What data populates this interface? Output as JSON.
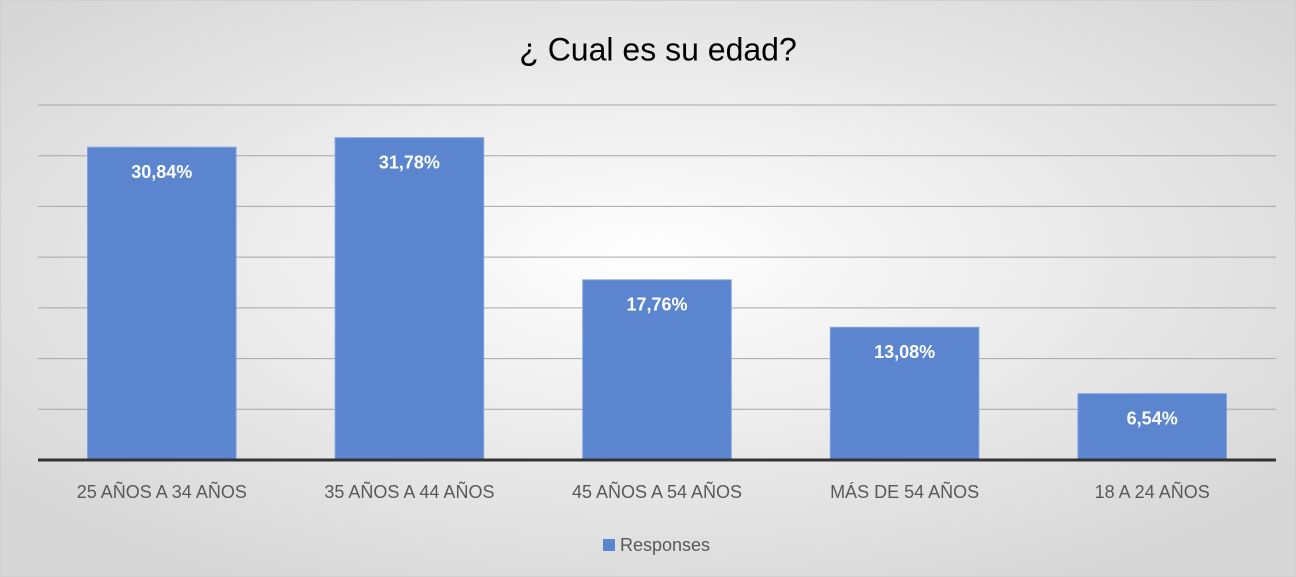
{
  "chart_data": {
    "type": "bar",
    "title": "¿ Cual es su edad?",
    "categories": [
      "25 AÑOS A 34 AÑOS",
      "35 AÑOS A 44 AÑOS",
      "45 AÑOS A 54 AÑOS",
      "MÁS DE 54 AÑOS",
      "18 A 24 AÑOS"
    ],
    "series": [
      {
        "name": "Responses",
        "color": "#5b86cf",
        "values": [
          30.84,
          31.78,
          17.76,
          13.08,
          6.54
        ],
        "value_labels": [
          "30,84%",
          "31,78%",
          "17,76%",
          "13,08%",
          "6,54%"
        ]
      }
    ],
    "ylim": [
      0,
      35
    ],
    "yticks": [
      0,
      5,
      10,
      15,
      20,
      25,
      30,
      35
    ],
    "grid": true,
    "legend": "bottom"
  }
}
